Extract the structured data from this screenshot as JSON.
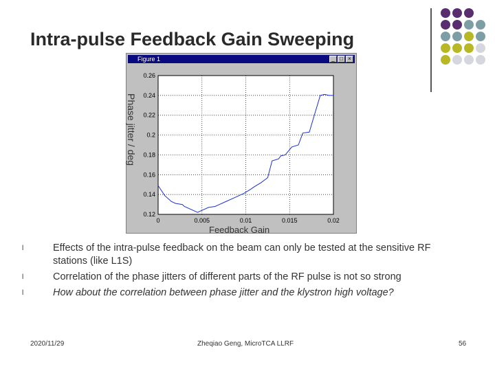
{
  "slide": {
    "title": "Intra-pulse Feedback Gain Sweeping",
    "dots": [
      "#5a2d6e",
      "#5a2d6e",
      "#5a2d6e",
      "",
      "#5a2d6e",
      "#5a2d6e",
      "#7e9ea6",
      "#7e9ea6",
      "#7e9ea6",
      "#7e9ea6",
      "#b8b827",
      "#7e9ea6",
      "#b8b827",
      "#b8b827",
      "#b8b827",
      "#d6d6de",
      "#b8b827",
      "#d6d6de",
      "#d6d6de",
      "#d6d6de"
    ]
  },
  "figure": {
    "window_title": "Figure 1",
    "minimize": "_",
    "maximize": "□",
    "close": "×",
    "ylabel": "Phase jitter / deg",
    "xlabel": "Feedback Gain"
  },
  "chart_data": {
    "type": "line",
    "x": [
      0,
      0.00075,
      0.0015,
      0.002,
      0.00275,
      0.003,
      0.00375,
      0.0045,
      0.005,
      0.00575,
      0.0065,
      0.007,
      0.00775,
      0.0085,
      0.009,
      0.00975,
      0.0105,
      0.011,
      0.01175,
      0.0125,
      0.013,
      0.01375,
      0.014,
      0.0145,
      0.01525,
      0.016,
      0.0165,
      0.01725,
      0.01775,
      0.0185,
      0.019,
      0.0195,
      0.02
    ],
    "y": [
      0.149,
      0.139,
      0.133,
      0.131,
      0.13,
      0.128,
      0.125,
      0.122,
      0.124,
      0.127,
      0.128,
      0.13,
      0.133,
      0.136,
      0.138,
      0.141,
      0.145,
      0.148,
      0.152,
      0.157,
      0.174,
      0.176,
      0.179,
      0.18,
      0.188,
      0.19,
      0.202,
      0.203,
      0.218,
      0.24,
      0.241,
      0.24,
      0.24
    ],
    "xlim": [
      0,
      0.02
    ],
    "ylim": [
      0.12,
      0.26
    ],
    "xticks": [
      "0",
      "0.005",
      "0.01",
      "0.015",
      "0.02"
    ],
    "yticks": [
      "0.26",
      "0.24",
      "0.22",
      "0.2",
      "0.18",
      "0.16",
      "0.14",
      "0.12"
    ],
    "grid": true,
    "line_color": "#1a2fd6"
  },
  "bullets": [
    {
      "mark": "l",
      "text": "Effects of the intra-pulse feedback on the beam can only be tested at the sensitive RF stations (like L1S)"
    },
    {
      "mark": "l",
      "text": "Correlation of the phase jitters of different parts of the RF pulse is not so strong"
    },
    {
      "mark": "l",
      "text": "How about the correlation between phase jitter and the klystron high voltage?"
    }
  ],
  "footer": {
    "date": "2020/11/29",
    "author": "Zheqiao Geng, MicroTCA LLRF",
    "page": "56"
  }
}
